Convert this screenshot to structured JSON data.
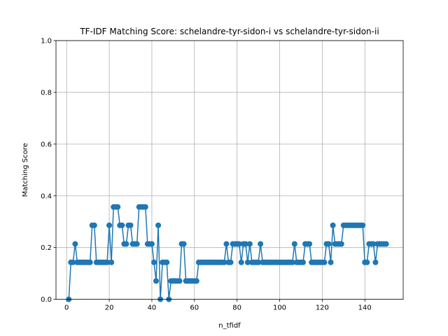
{
  "chart_data": {
    "type": "line",
    "title": "TF-IDF Matching Score: schelandre-tyr-sidon-i vs schelandre-tyr-sidon-ii",
    "xlabel": "n_tfidf",
    "ylabel": "Matching Score",
    "xlim": [
      -5,
      158
    ],
    "ylim": [
      0,
      1
    ],
    "xticks": [
      0,
      20,
      40,
      60,
      80,
      100,
      120,
      140
    ],
    "yticks": [
      0.0,
      0.2,
      0.4,
      0.6,
      0.8,
      1.0
    ],
    "xtick_labels": [
      "0",
      "20",
      "40",
      "60",
      "80",
      "100",
      "120",
      "140"
    ],
    "ytick_labels": [
      "0.0",
      "0.2",
      "0.4",
      "0.6",
      "0.8",
      "1.0"
    ],
    "grid": true,
    "color": "#1f77b4",
    "marker": "circle",
    "series": [
      {
        "x": [
          1,
          2,
          3,
          4,
          5,
          6,
          7,
          8,
          9,
          10,
          11,
          12,
          13,
          14,
          15,
          16,
          17,
          18,
          19,
          20,
          21,
          22,
          23,
          24,
          25,
          26,
          27,
          28,
          29,
          30,
          31,
          32,
          33,
          34,
          35,
          36,
          37,
          38,
          39,
          40,
          41,
          42,
          43,
          44,
          45,
          46,
          47,
          48,
          49,
          50,
          51,
          52,
          53,
          54,
          55,
          56,
          57,
          58,
          59,
          60,
          61,
          62,
          63,
          64,
          65,
          66,
          67,
          68,
          69,
          70,
          71,
          72,
          73,
          74,
          75,
          76,
          77,
          78,
          79,
          80,
          81,
          82,
          83,
          84,
          85,
          86,
          87,
          88,
          89,
          90,
          91,
          92,
          93,
          94,
          95,
          96,
          97,
          98,
          99,
          100,
          101,
          102,
          103,
          104,
          105,
          106,
          107,
          108,
          109,
          110,
          111,
          112,
          113,
          114,
          115,
          116,
          117,
          118,
          119,
          120,
          121,
          122,
          123,
          124,
          125,
          126,
          127,
          128,
          129,
          130,
          131,
          132,
          133,
          134,
          135,
          136,
          137,
          138,
          139,
          140,
          141,
          142,
          143,
          144,
          145,
          146,
          147,
          148,
          149,
          150
        ],
        "y": [
          0,
          0.143,
          0.143,
          0.214,
          0.143,
          0.143,
          0.143,
          0.143,
          0.143,
          0.143,
          0.143,
          0.286,
          0.286,
          0.143,
          0.143,
          0.143,
          0.143,
          0.143,
          0.143,
          0.286,
          0.143,
          0.357,
          0.357,
          0.357,
          0.286,
          0.286,
          0.214,
          0.214,
          0.286,
          0.286,
          0.214,
          0.214,
          0.214,
          0.357,
          0.357,
          0.357,
          0.357,
          0.214,
          0.214,
          0.214,
          0.143,
          0.071,
          0.286,
          0,
          0.143,
          0.143,
          0.143,
          0,
          0.071,
          0.071,
          0.071,
          0.071,
          0.071,
          0.214,
          0.214,
          0.071,
          0.071,
          0.071,
          0.071,
          0.071,
          0.071,
          0.143,
          0.143,
          0.143,
          0.143,
          0.143,
          0.143,
          0.143,
          0.143,
          0.143,
          0.143,
          0.143,
          0.143,
          0.143,
          0.214,
          0.143,
          0.143,
          0.214,
          0.214,
          0.214,
          0.214,
          0.143,
          0.214,
          0.214,
          0.143,
          0.214,
          0.143,
          0.143,
          0.143,
          0.143,
          0.214,
          0.143,
          0.143,
          0.143,
          0.143,
          0.143,
          0.143,
          0.143,
          0.143,
          0.143,
          0.143,
          0.143,
          0.143,
          0.143,
          0.143,
          0.143,
          0.214,
          0.143,
          0.143,
          0.143,
          0.143,
          0.214,
          0.214,
          0.214,
          0.143,
          0.143,
          0.143,
          0.143,
          0.143,
          0.143,
          0.143,
          0.214,
          0.214,
          0.143,
          0.286,
          0.214,
          0.214,
          0.214,
          0.214,
          0.286,
          0.286,
          0.286,
          0.286,
          0.286,
          0.286,
          0.286,
          0.286,
          0.286,
          0.286,
          0.143,
          0.143,
          0.214,
          0.214,
          0.214,
          0.143,
          0.214,
          0.214,
          0.214,
          0.214,
          0.214
        ]
      }
    ]
  }
}
